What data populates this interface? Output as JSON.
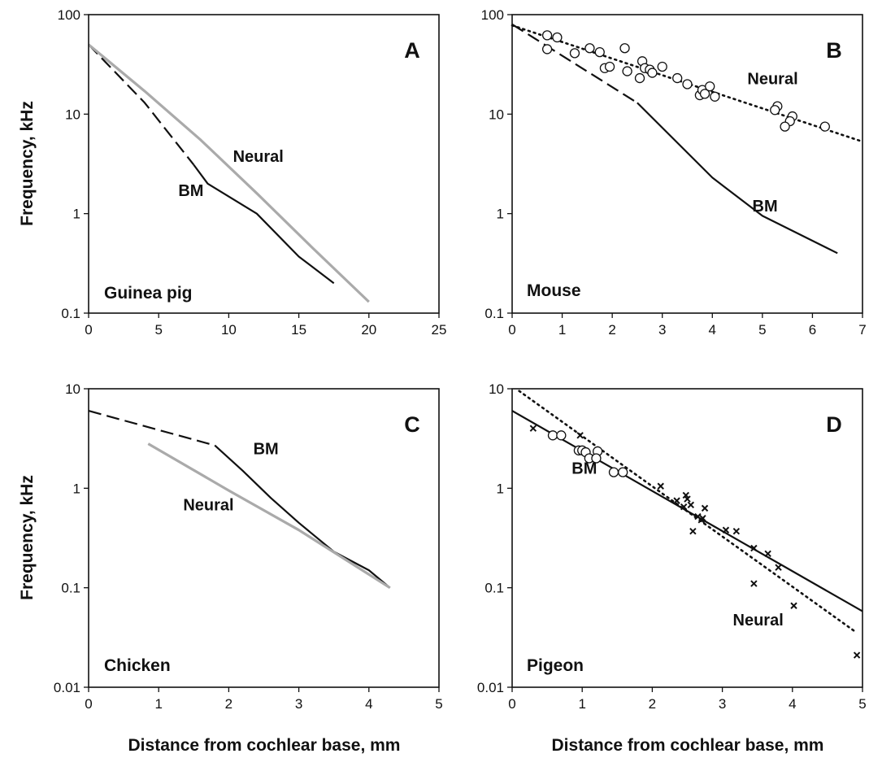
{
  "figure": {
    "xlabel": "Distance from cochlear base, mm",
    "ylabel": "Frequency, kHz"
  },
  "chart_data": [
    {
      "panel": "A",
      "type": "line",
      "species": "Guinea pig",
      "x_ticks": [
        "0",
        "5",
        "10",
        "15",
        "20",
        "25"
      ],
      "y_ticks": [
        "0.1",
        "1",
        "10",
        "100"
      ],
      "xlim": [
        0,
        25
      ],
      "ylim": [
        0.1,
        100
      ],
      "y_scale": "log",
      "series": [
        {
          "name": "BM",
          "color": "#111111",
          "dash": "dashed",
          "x": [
            0,
            4,
            7.5
          ],
          "y": [
            50,
            13,
            3.1
          ]
        },
        {
          "name": "BM",
          "color": "#111111",
          "dash": "solid",
          "x": [
            7.5,
            8.5,
            12,
            15,
            17.5
          ],
          "y": [
            3.1,
            2.0,
            1.0,
            0.37,
            0.2
          ]
        },
        {
          "name": "Neural",
          "color": "#aaaaaa",
          "dash": "solid",
          "x": [
            0,
            4,
            8,
            12,
            16,
            20
          ],
          "y": [
            50,
            17,
            5.5,
            1.6,
            0.45,
            0.13
          ]
        }
      ],
      "annotations": [
        {
          "text": "Neural",
          "x": 10.3,
          "y": 3.3
        },
        {
          "text": "BM",
          "x": 6.4,
          "y": 1.5
        }
      ]
    },
    {
      "panel": "B",
      "type": "scatter",
      "species": "Mouse",
      "x_ticks": [
        "0",
        "1",
        "2",
        "3",
        "4",
        "5",
        "6",
        "7"
      ],
      "y_ticks": [
        "0.1",
        "1",
        "10",
        "100"
      ],
      "xlim": [
        0,
        7
      ],
      "ylim": [
        0.1,
        100
      ],
      "y_scale": "log",
      "series": [
        {
          "name": "BM",
          "color": "#111111",
          "dash": "dashed",
          "x": [
            0,
            2.5
          ],
          "y": [
            80,
            13
          ]
        },
        {
          "name": "BM",
          "color": "#111111",
          "dash": "solid",
          "x": [
            2.5,
            4,
            5,
            6.5
          ],
          "y": [
            13,
            2.3,
            0.95,
            0.4
          ]
        },
        {
          "name": "Neural",
          "color": "#111111",
          "dash": "dotted",
          "x": [
            0,
            7
          ],
          "y": [
            78,
            5.3
          ]
        },
        {
          "name": "Neural",
          "marker": "circle",
          "x": [
            0.7,
            0.9,
            0.7,
            1.25,
            1.55,
            1.75,
            1.85,
            1.95,
            2.25,
            2.3,
            2.6,
            2.65,
            2.75,
            2.55,
            2.8,
            3.0,
            3.3,
            3.5,
            3.75,
            3.8,
            3.85,
            3.95,
            4.05,
            5.3,
            5.25,
            5.6,
            5.55,
            5.45,
            6.25
          ],
          "y": [
            62,
            59,
            45,
            41,
            46,
            42,
            29,
            30,
            46,
            27,
            34,
            29,
            28,
            23,
            26,
            30,
            23,
            20,
            15.5,
            17.5,
            16,
            19,
            15,
            12,
            11,
            9.5,
            8.5,
            7.5,
            7.5
          ]
        }
      ],
      "annotations": [
        {
          "text": "Neural",
          "x": 4.7,
          "y": 20
        },
        {
          "text": "BM",
          "x": 4.8,
          "y": 1.05
        }
      ]
    },
    {
      "panel": "C",
      "type": "line",
      "species": "Chicken",
      "x_ticks": [
        "0",
        "1",
        "2",
        "3",
        "4",
        "5"
      ],
      "y_ticks": [
        "0.01",
        "0.1",
        "1",
        "10"
      ],
      "xlim": [
        0,
        5
      ],
      "ylim": [
        0.01,
        10
      ],
      "y_scale": "log",
      "series": [
        {
          "name": "BM",
          "color": "#111111",
          "dash": "dashed",
          "x": [
            0,
            1.8
          ],
          "y": [
            6,
            2.7
          ]
        },
        {
          "name": "BM",
          "color": "#111111",
          "dash": "solid",
          "x": [
            1.8,
            2.2,
            2.6,
            3,
            3.5,
            4,
            4.3
          ],
          "y": [
            2.7,
            1.5,
            0.8,
            0.45,
            0.23,
            0.15,
            0.1
          ]
        },
        {
          "name": "Neural",
          "color": "#aaaaaa",
          "dash": "solid",
          "x": [
            0.85,
            2,
            3,
            4.3
          ],
          "y": [
            2.8,
            0.95,
            0.38,
            0.1
          ]
        }
      ],
      "annotations": [
        {
          "text": "BM",
          "x": 2.35,
          "y": 2.2
        },
        {
          "text": "Neural",
          "x": 1.35,
          "y": 0.6
        }
      ]
    },
    {
      "panel": "D",
      "type": "scatter",
      "species": "Pigeon",
      "x_ticks": [
        "0",
        "1",
        "2",
        "3",
        "4",
        "5"
      ],
      "y_ticks": [
        "0.01",
        "0.1",
        "1",
        "10"
      ],
      "xlim": [
        0,
        5
      ],
      "ylim": [
        0.01,
        10
      ],
      "y_scale": "log",
      "series": [
        {
          "name": "BM",
          "color": "#111111",
          "dash": "solid",
          "x": [
            0,
            5
          ],
          "y": [
            6,
            0.058
          ]
        },
        {
          "name": "Neural",
          "color": "#111111",
          "dash": "dotted",
          "x": [
            0.1,
            4.9
          ],
          "y": [
            9.5,
            0.036
          ]
        },
        {
          "name": "BM",
          "marker": "circle",
          "x": [
            0.58,
            0.7,
            0.95,
            1.0,
            1.05,
            1.1,
            1.22,
            1.2,
            1.45,
            1.58
          ],
          "y": [
            3.4,
            3.4,
            2.4,
            2.4,
            2.3,
            2.0,
            2.35,
            2.0,
            1.45,
            1.45
          ]
        },
        {
          "name": "Neural",
          "marker": "cross",
          "x": [
            0.3,
            0.97,
            2.12,
            2.35,
            2.45,
            2.48,
            2.5,
            2.55,
            2.58,
            2.65,
            2.7,
            2.72,
            2.75,
            3.05,
            3.2,
            3.45,
            3.65,
            3.8,
            3.45,
            4.02,
            4.92
          ],
          "y": [
            4.0,
            3.4,
            1.05,
            0.75,
            0.65,
            0.85,
            0.78,
            0.68,
            0.37,
            0.52,
            0.48,
            0.5,
            0.63,
            0.38,
            0.37,
            0.25,
            0.22,
            0.16,
            0.11,
            0.066,
            0.021
          ]
        }
      ],
      "annotations": [
        {
          "text": "BM",
          "x": 0.85,
          "y": 1.4
        },
        {
          "text": "Neural",
          "x": 3.15,
          "y": 0.042
        }
      ]
    }
  ]
}
